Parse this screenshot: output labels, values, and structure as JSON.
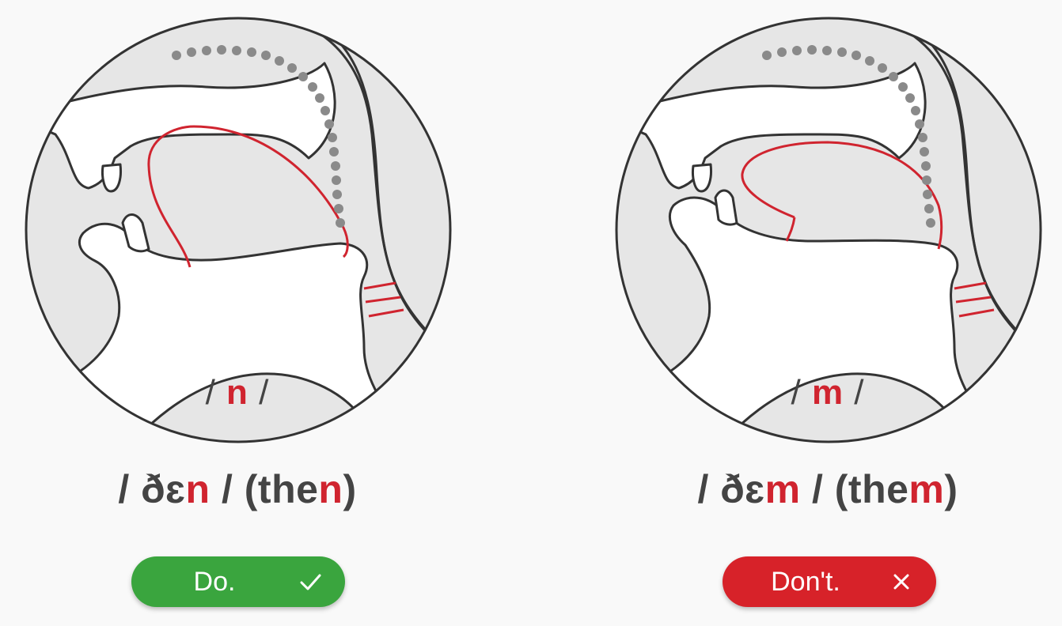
{
  "colors": {
    "highlight": "#d0242f",
    "text": "#444444",
    "do_button": "#3aa53e",
    "dont_button": "#d72229",
    "outline": "#333333",
    "fill_light": "#e6e6e6"
  },
  "panels": [
    {
      "id": "do",
      "sound_prefix": "/ ",
      "sound_hl": "n",
      "sound_suffix": " /",
      "word_prefix": "/ ðɛ",
      "word_hl1": "n",
      "word_mid": " / (the",
      "word_hl2": "n",
      "word_suffix": ")",
      "button_label": "Do.",
      "button_icon": "check-icon"
    },
    {
      "id": "dont",
      "sound_prefix": "/ ",
      "sound_hl": "m",
      "sound_suffix": " /",
      "word_prefix": "/ ðɛ",
      "word_hl1": "m",
      "word_mid": " / (the",
      "word_hl2": "m",
      "word_suffix": ")",
      "button_label": "Don't.",
      "button_icon": "close-icon"
    }
  ]
}
